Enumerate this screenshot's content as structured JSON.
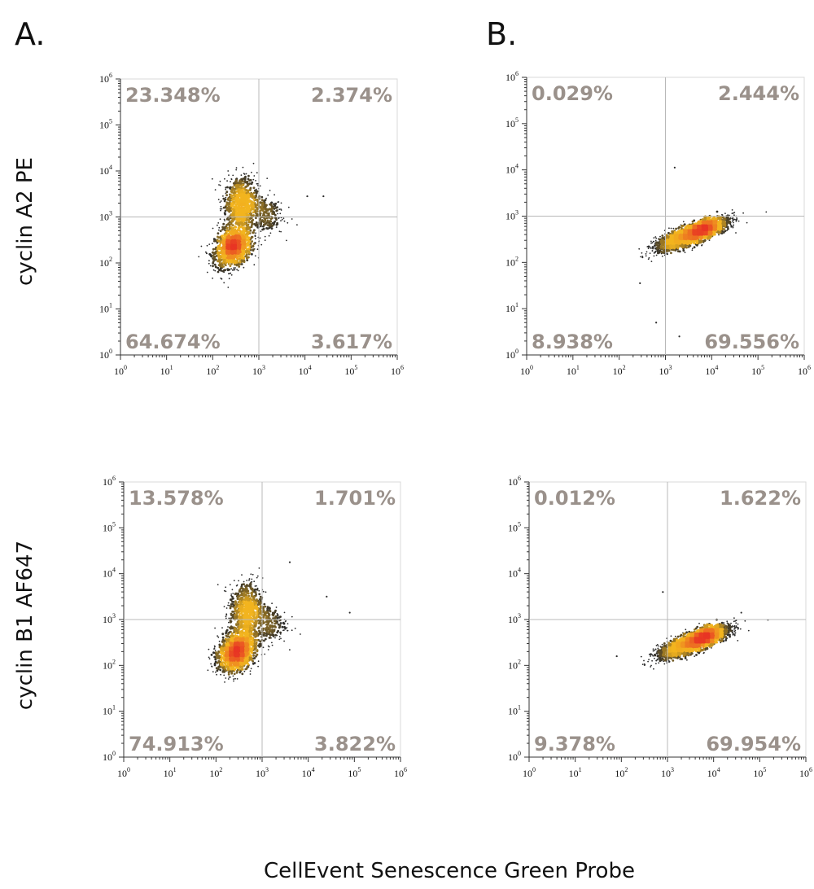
{
  "panel_labels": [
    "A.",
    "B."
  ],
  "row_labels": [
    "cyclin A2 PE",
    "cyclin B1 AF647"
  ],
  "shared_xlabel": "CellEvent Senescence Green Probe",
  "colors": {
    "quadrant_text": "#9a918b",
    "density_low": "#2a2a2a",
    "density_mid": "#f2b41f",
    "density_high": "#e83524"
  },
  "chart_data": [
    {
      "type": "scatter",
      "panel": "A.",
      "ylabel": "cyclin A2 PE",
      "xlabel": "CellEvent Senescence Green Probe",
      "x_scale": "log",
      "y_scale": "log",
      "xlim": [
        1,
        1000000
      ],
      "ylim": [
        1,
        1000000
      ],
      "gate": {
        "x": 1000,
        "y": 1000
      },
      "quadrants": {
        "upper_left": "23.348%",
        "upper_right": "2.374%",
        "lower_left": "64.674%",
        "lower_right": "3.617%"
      },
      "populations": [
        {
          "center_log": [
            2.45,
            2.35
          ],
          "spread_log": [
            0.2,
            0.22
          ],
          "corr": 0.3,
          "n": 1300
        },
        {
          "center_log": [
            2.6,
            3.3
          ],
          "spread_log": [
            0.18,
            0.3
          ],
          "corr": 0.1,
          "n": 800
        },
        {
          "center_log": [
            3.1,
            3.05
          ],
          "spread_log": [
            0.22,
            0.22
          ],
          "corr": 0.0,
          "n": 250
        }
      ],
      "outliers_log": [
        [
          4.05,
          3.45
        ],
        [
          4.4,
          3.45
        ]
      ]
    },
    {
      "type": "scatter",
      "panel": "B.",
      "ylabel": "cyclin A2 PE",
      "xlabel": "CellEvent Senescence Green Probe",
      "x_scale": "log",
      "y_scale": "log",
      "xlim": [
        1,
        1000000
      ],
      "ylim": [
        1,
        1000000
      ],
      "gate": {
        "x": 1000,
        "y": 1000
      },
      "quadrants": {
        "upper_left": "0.029%",
        "upper_right": "2.444%",
        "lower_left": "8.938%",
        "lower_right": "69.556%"
      },
      "populations": [
        {
          "center_log": [
            3.55,
            2.6
          ],
          "spread_log": [
            0.38,
            0.17
          ],
          "corr": 0.8,
          "n": 2100
        },
        {
          "center_log": [
            3.9,
            2.75
          ],
          "spread_log": [
            0.18,
            0.1
          ],
          "corr": 0.5,
          "n": 700
        }
      ],
      "outliers_log": [
        [
          2.8,
          0.7
        ],
        [
          3.3,
          0.4
        ],
        [
          2.45,
          1.55
        ],
        [
          3.2,
          4.05
        ]
      ]
    },
    {
      "type": "scatter",
      "panel": "A.",
      "ylabel": "cyclin B1 AF647",
      "xlabel": "CellEvent Senescence Green Probe",
      "x_scale": "log",
      "y_scale": "log",
      "xlim": [
        1,
        1000000
      ],
      "ylim": [
        1,
        1000000
      ],
      "gate": {
        "x": 1000,
        "y": 1000
      },
      "quadrants": {
        "upper_left": "13.578%",
        "upper_right": "1.701%",
        "lower_left": "74.913%",
        "lower_right": "3.822%"
      },
      "populations": [
        {
          "center_log": [
            2.45,
            2.3
          ],
          "spread_log": [
            0.2,
            0.22
          ],
          "corr": 0.3,
          "n": 1400
        },
        {
          "center_log": [
            2.65,
            3.2
          ],
          "spread_log": [
            0.18,
            0.32
          ],
          "corr": 0.1,
          "n": 700
        },
        {
          "center_log": [
            3.1,
            2.9
          ],
          "spread_log": [
            0.22,
            0.22
          ],
          "corr": 0.0,
          "n": 250
        }
      ],
      "outliers_log": [
        [
          4.4,
          3.5
        ],
        [
          4.9,
          3.15
        ],
        [
          3.6,
          4.25
        ]
      ]
    },
    {
      "type": "scatter",
      "panel": "B.",
      "ylabel": "cyclin B1 AF647",
      "xlabel": "CellEvent Senescence Green Probe",
      "x_scale": "log",
      "y_scale": "log",
      "xlim": [
        1,
        1000000
      ],
      "ylim": [
        1,
        1000000
      ],
      "gate": {
        "x": 1000,
        "y": 1000
      },
      "quadrants": {
        "upper_left": "0.012%",
        "upper_right": "1.622%",
        "lower_left": "9.378%",
        "lower_right": "69.954%"
      },
      "populations": [
        {
          "center_log": [
            3.55,
            2.5
          ],
          "spread_log": [
            0.38,
            0.17
          ],
          "corr": 0.8,
          "n": 2100
        },
        {
          "center_log": [
            3.85,
            2.65
          ],
          "spread_log": [
            0.18,
            0.1
          ],
          "corr": 0.5,
          "n": 700
        }
      ],
      "outliers_log": [
        [
          1.9,
          2.2
        ],
        [
          2.9,
          3.6
        ],
        [
          4.6,
          3.15
        ]
      ]
    }
  ]
}
